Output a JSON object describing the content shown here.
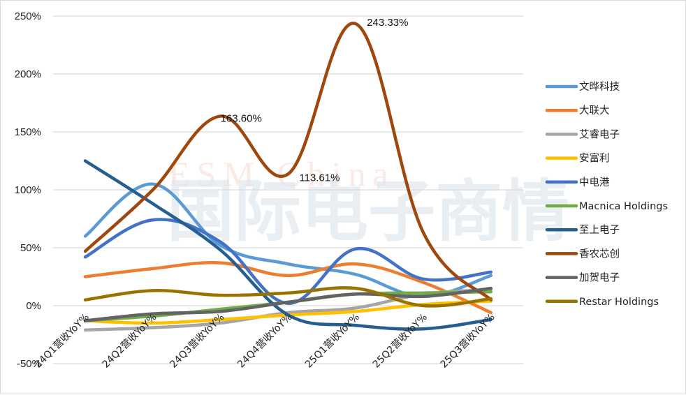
{
  "chart_data": {
    "type": "line",
    "title": "",
    "xlabel": "",
    "ylabel": "",
    "ylim": [
      -50,
      250
    ],
    "yticks": [
      -50,
      0,
      50,
      100,
      150,
      200,
      250
    ],
    "ytick_labels": [
      "-50%",
      "0%",
      "50%",
      "100%",
      "150%",
      "200%",
      "250%"
    ],
    "grid": true,
    "legend_position": "right",
    "smooth": true,
    "categories": [
      "24Q1营收YoY%",
      "24Q2营收YoY%",
      "24Q3营收YoY%",
      "24Q4营收YoY%",
      "25Q1营收YoY%",
      "25Q2营收YoY%",
      "25Q3营收YoY%"
    ],
    "series": [
      {
        "name": "文晔科技",
        "color": "#5B9BD5",
        "values": [
          60,
          105,
          52,
          36,
          27,
          8,
          26
        ]
      },
      {
        "name": "大联大",
        "color": "#ED7D31",
        "values": [
          25,
          32,
          37,
          26,
          36,
          20,
          -6
        ]
      },
      {
        "name": "艾睿电子",
        "color": "#A5A5A5",
        "values": [
          -21,
          -19,
          -15,
          -6,
          -2,
          10,
          14
        ]
      },
      {
        "name": "安富利",
        "color": "#FFC000",
        "values": [
          -13,
          -15,
          -12,
          -8,
          -5,
          1,
          4
        ]
      },
      {
        "name": "中电港",
        "color": "#4472C4",
        "values": [
          42,
          74,
          55,
          2,
          49,
          23,
          29
        ]
      },
      {
        "name": "Macnica Holdings",
        "color": "#70AD47",
        "values": [
          -13,
          -9,
          -3,
          3,
          10,
          11,
          12
        ]
      },
      {
        "name": "至上电子",
        "color": "#255E91",
        "values": [
          125,
          88,
          48,
          -8,
          -17,
          -20,
          -12
        ]
      },
      {
        "name": "香农芯创",
        "color": "#9E480E",
        "values": [
          47,
          100,
          163.6,
          113.61,
          243.33,
          63,
          5
        ]
      },
      {
        "name": "加贺电子",
        "color": "#636363",
        "values": [
          -13,
          -7,
          -5,
          3,
          10,
          8,
          15
        ]
      },
      {
        "name": "Restar Holdings",
        "color": "#997300",
        "values": [
          5,
          13,
          9,
          11,
          15,
          0,
          6
        ]
      }
    ],
    "annotations": [
      {
        "series": "香农芯创",
        "category": "24Q3营收YoY%",
        "text": "163.60%"
      },
      {
        "series": "香农芯创",
        "category": "24Q4营收YoY%",
        "text": "113.61%"
      },
      {
        "series": "香农芯创",
        "category": "25Q1营收YoY%",
        "text": "243.33%"
      }
    ]
  },
  "watermark": {
    "line1": "ESM China",
    "line2": "国际电子商情"
  }
}
